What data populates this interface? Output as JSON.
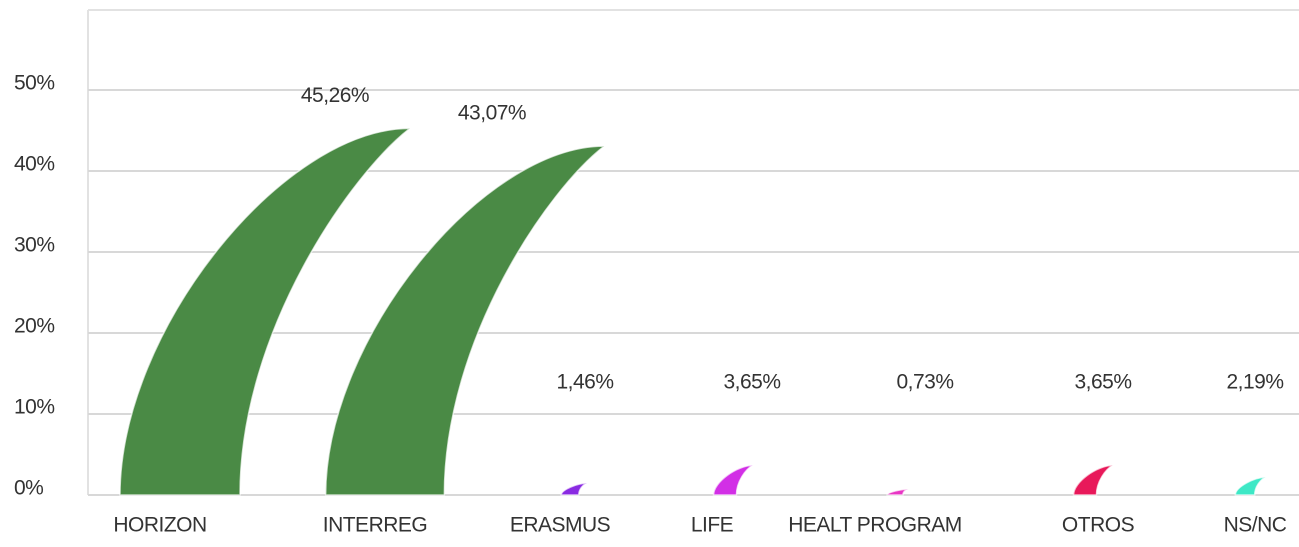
{
  "chart_data": {
    "type": "feather-bar",
    "categories": [
      "HORIZON",
      "INTERREG",
      "ERASMUS",
      "LIFE",
      "HEALT PROGRAM",
      "OTROS",
      "NS/NC"
    ],
    "values": [
      45.26,
      43.07,
      1.46,
      3.65,
      0.73,
      3.65,
      2.19
    ],
    "value_labels": [
      "45,26%",
      "43,07%",
      "1,46%",
      "3,65%",
      "0,73%",
      "3,65%",
      "2,19%"
    ],
    "colors": [
      "#4a8a45",
      "#4a8a45",
      "#8a2be2",
      "#d22fe6",
      "#e836c4",
      "#e8195a",
      "#3ee8c6"
    ],
    "ylim": [
      0,
      50
    ],
    "yticks": [
      {
        "value": 0,
        "label": "0%"
      },
      {
        "value": 10,
        "label": "10%"
      },
      {
        "value": 20,
        "label": "20%"
      },
      {
        "value": 30,
        "label": "30%"
      },
      {
        "value": 40,
        "label": "40%"
      },
      {
        "value": 50,
        "label": "50%"
      }
    ],
    "grid": true
  }
}
